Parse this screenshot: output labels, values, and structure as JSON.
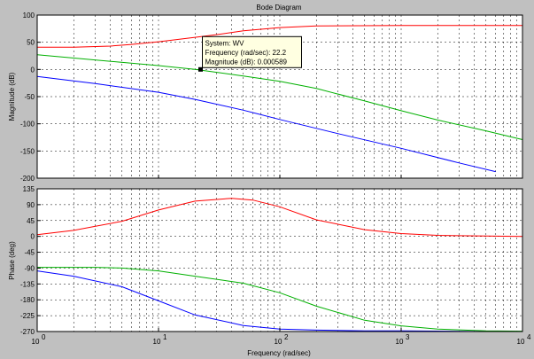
{
  "chart_data": {
    "type": "line",
    "title": "Bode Diagram",
    "xlabel": "Frequency  (rad/sec)",
    "x_scale": "log",
    "x_tick_labels": [
      {
        "base": "10",
        "exp": "0"
      },
      {
        "base": "10",
        "exp": "1"
      },
      {
        "base": "10",
        "exp": "2"
      },
      {
        "base": "10",
        "exp": "3"
      },
      {
        "base": "10",
        "exp": "4"
      }
    ],
    "grid": true,
    "colors": {
      "background": "#c0c0c0",
      "plot_area": "#ffffff",
      "red": "#ff0000",
      "green": "#00b000",
      "blue": "#0000ff",
      "tip_bg": "#ffffe1"
    },
    "magnitude": {
      "ylabel": "Magnitude (dB)",
      "ylim": [
        -200,
        100
      ],
      "yticks": [
        100,
        50,
        0,
        -50,
        -100,
        -150,
        -200
      ],
      "series": [
        {
          "color": "red",
          "x": [
            1,
            2,
            4,
            6,
            10,
            20,
            30,
            50,
            100,
            200,
            1000,
            10000
          ],
          "y": [
            41,
            41,
            43,
            46,
            51,
            59,
            64,
            71,
            77,
            80,
            81,
            81
          ]
        },
        {
          "color": "green",
          "x": [
            1,
            10,
            20,
            50,
            100,
            200,
            500,
            1000,
            2000,
            5000,
            10000
          ],
          "y": [
            27,
            7,
            0,
            -12,
            -22,
            -35,
            -58,
            -76,
            -93,
            -113,
            -129
          ]
        },
        {
          "color": "blue",
          "x": [
            1,
            3,
            10,
            20,
            50,
            100,
            300,
            1000,
            3000,
            6000
          ],
          "y": [
            -13,
            -26,
            -42,
            -55,
            -75,
            -92,
            -118,
            -145,
            -172,
            -188
          ]
        }
      ],
      "datatip": {
        "x": 22.2,
        "y": 0.000589,
        "lines": [
          "System: WV",
          "Frequency (rad/sec): 22.2",
          "Magnitude (dB): 0.000589"
        ]
      }
    },
    "phase": {
      "ylabel": "Phase (deg)",
      "ylim": [
        -270,
        135
      ],
      "yticks": [
        135,
        90,
        45,
        0,
        -45,
        -90,
        -135,
        -180,
        -225,
        -270
      ],
      "series": [
        {
          "color": "red",
          "x": [
            1,
            2,
            5,
            10,
            20,
            40,
            60,
            100,
            200,
            500,
            1000,
            2000,
            5000,
            10000
          ],
          "y": [
            5,
            17,
            43,
            75,
            100,
            108,
            103,
            84,
            47,
            19,
            8,
            3,
            1,
            0
          ]
        },
        {
          "color": "green",
          "x": [
            1,
            3,
            5,
            10,
            20,
            50,
            100,
            200,
            500,
            1000,
            2000,
            5000,
            10000
          ],
          "y": [
            -88,
            -88,
            -90,
            -98,
            -113,
            -133,
            -160,
            -198,
            -238,
            -254,
            -263,
            -268,
            -269
          ]
        },
        {
          "color": "blue",
          "x": [
            1,
            2,
            5,
            10,
            20,
            50,
            100,
            200,
            500,
            1000,
            5000,
            10000
          ],
          "y": [
            -98,
            -113,
            -143,
            -183,
            -223,
            -253,
            -263,
            -266,
            -268,
            -268,
            -270,
            -270
          ]
        }
      ]
    }
  }
}
